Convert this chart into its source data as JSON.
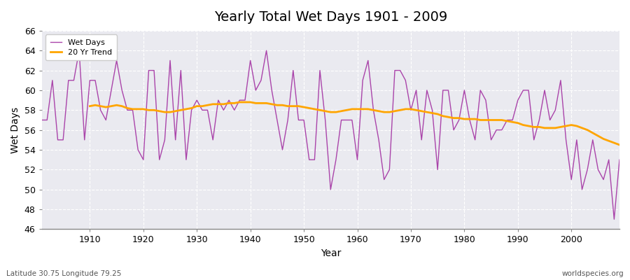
{
  "title": "Yearly Total Wet Days 1901 - 2009",
  "xlabel": "Year",
  "ylabel": "Wet Days",
  "subtitle_left": "Latitude 30.75 Longitude 79.25",
  "subtitle_right": "worldspecies.org",
  "years": [
    1901,
    1902,
    1903,
    1904,
    1905,
    1906,
    1907,
    1908,
    1909,
    1910,
    1911,
    1912,
    1913,
    1914,
    1915,
    1916,
    1917,
    1918,
    1919,
    1920,
    1921,
    1922,
    1923,
    1924,
    1925,
    1926,
    1927,
    1928,
    1929,
    1930,
    1931,
    1932,
    1933,
    1934,
    1935,
    1936,
    1937,
    1938,
    1939,
    1940,
    1941,
    1942,
    1943,
    1944,
    1945,
    1946,
    1947,
    1948,
    1949,
    1950,
    1951,
    1952,
    1953,
    1954,
    1955,
    1956,
    1957,
    1958,
    1959,
    1960,
    1961,
    1962,
    1963,
    1964,
    1965,
    1966,
    1967,
    1968,
    1969,
    1970,
    1971,
    1972,
    1973,
    1974,
    1975,
    1976,
    1977,
    1978,
    1979,
    1980,
    1981,
    1982,
    1983,
    1984,
    1985,
    1986,
    1987,
    1988,
    1989,
    1990,
    1991,
    1992,
    1993,
    1994,
    1995,
    1996,
    1997,
    1998,
    1999,
    2000,
    2001,
    2002,
    2003,
    2004,
    2005,
    2006,
    2007,
    2008,
    2009
  ],
  "wet_days": [
    57,
    57,
    61,
    55,
    55,
    61,
    61,
    64,
    55,
    61,
    61,
    58,
    57,
    60,
    63,
    60,
    58,
    58,
    54,
    53,
    62,
    62,
    53,
    55,
    63,
    55,
    62,
    53,
    58,
    59,
    58,
    58,
    55,
    59,
    58,
    59,
    58,
    59,
    59,
    63,
    60,
    61,
    64,
    60,
    57,
    54,
    57,
    62,
    57,
    57,
    53,
    53,
    62,
    57,
    50,
    53,
    57,
    57,
    57,
    53,
    61,
    63,
    58,
    55,
    51,
    52,
    62,
    62,
    61,
    58,
    60,
    55,
    60,
    58,
    52,
    60,
    60,
    56,
    57,
    60,
    57,
    55,
    60,
    59,
    55,
    56,
    56,
    57,
    57,
    59,
    60,
    60,
    55,
    57,
    60,
    57,
    58,
    61,
    55,
    51,
    55,
    50,
    52,
    55,
    52,
    51,
    53,
    47,
    53
  ],
  "trend_years": [
    1910,
    1911,
    1912,
    1913,
    1914,
    1915,
    1916,
    1917,
    1918,
    1919,
    1920,
    1921,
    1922,
    1923,
    1924,
    1925,
    1926,
    1927,
    1928,
    1929,
    1930,
    1931,
    1932,
    1933,
    1934,
    1935,
    1936,
    1937,
    1938,
    1939,
    1940,
    1941,
    1942,
    1943,
    1944,
    1945,
    1946,
    1947,
    1948,
    1949,
    1950,
    1951,
    1952,
    1953,
    1954,
    1955,
    1956,
    1957,
    1958,
    1959,
    1960,
    1961,
    1962,
    1963,
    1964,
    1965,
    1966,
    1967,
    1968,
    1969,
    1970,
    1971,
    1972,
    1973,
    1974,
    1975,
    1976,
    1977,
    1978,
    1979,
    1980,
    1981,
    1982,
    1983,
    1984,
    1985,
    1986,
    1987,
    1988,
    1989,
    1990,
    1991,
    1992,
    1993,
    1994,
    1995,
    1996,
    1997,
    1998,
    1999,
    2000,
    2001,
    2002,
    2003,
    2004,
    2005,
    2006,
    2007,
    2008,
    2009
  ],
  "trend_values": [
    58.4,
    58.5,
    58.4,
    58.3,
    58.4,
    58.5,
    58.4,
    58.2,
    58.1,
    58.1,
    58.1,
    58.0,
    58.0,
    57.9,
    57.8,
    57.8,
    57.9,
    58.0,
    58.1,
    58.2,
    58.4,
    58.4,
    58.5,
    58.6,
    58.6,
    58.6,
    58.7,
    58.7,
    58.8,
    58.8,
    58.8,
    58.7,
    58.7,
    58.7,
    58.6,
    58.5,
    58.5,
    58.4,
    58.4,
    58.4,
    58.3,
    58.2,
    58.1,
    58.0,
    57.9,
    57.8,
    57.8,
    57.9,
    58.0,
    58.1,
    58.1,
    58.1,
    58.1,
    58.0,
    57.9,
    57.8,
    57.8,
    57.9,
    58.0,
    58.1,
    58.1,
    58.0,
    57.9,
    57.8,
    57.7,
    57.6,
    57.4,
    57.3,
    57.2,
    57.2,
    57.1,
    57.1,
    57.1,
    57.0,
    57.0,
    57.0,
    57.0,
    57.0,
    56.9,
    56.8,
    56.7,
    56.5,
    56.4,
    56.3,
    56.3,
    56.2,
    56.2,
    56.2,
    56.3,
    56.4,
    56.5,
    56.4,
    56.2,
    56.0,
    55.7,
    55.4,
    55.1,
    54.9,
    54.7,
    54.5
  ],
  "wet_days_color": "#AA44AA",
  "trend_color": "#FFA500",
  "bg_color": "#EAEAF0",
  "grid_color": "#FFFFFF",
  "ylim": [
    46,
    66
  ],
  "yticks": [
    46,
    48,
    50,
    52,
    54,
    56,
    58,
    60,
    62,
    64,
    66
  ],
  "xticks": [
    1910,
    1920,
    1930,
    1940,
    1950,
    1960,
    1970,
    1980,
    1990,
    2000
  ],
  "figsize": [
    9.0,
    4.0
  ],
  "dpi": 100
}
